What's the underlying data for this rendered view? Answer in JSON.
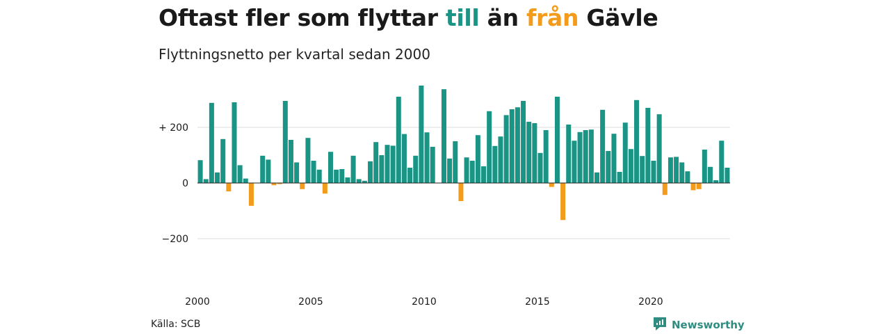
{
  "title": {
    "part1": "Oftast fler som flyttar ",
    "part2": "till",
    "part3": " än ",
    "part4": "från",
    "part5": " Gävle"
  },
  "subtitle": "Flyttningsnetto per kvartal sedan 2000",
  "source": "Källa: SCB",
  "brand": {
    "name": "Newsworthy",
    "logo_icon": "newsworthy-logo-icon"
  },
  "colors": {
    "positive": "#1a9484",
    "negative": "#f39c1b",
    "grid": "#dddddd",
    "zero_line": "#222222"
  },
  "chart_data": {
    "type": "bar",
    "title": "Oftast fler som flyttar till än från Gävle",
    "subtitle": "Flyttningsnetto per kvartal sedan 2000",
    "xlabel": "",
    "ylabel": "",
    "ylim": [
      -330,
      360
    ],
    "grid": true,
    "start_year": 2000,
    "x_ticks": [
      "2000",
      "2005",
      "2010",
      "2015",
      "2020"
    ],
    "y_ticks": [
      {
        "value": 200,
        "label": "+ 200"
      },
      {
        "value": 0,
        "label": "0"
      },
      {
        "value": -200,
        "label": "−200"
      }
    ],
    "values": [
      82,
      14,
      288,
      38,
      158,
      -30,
      290,
      64,
      16,
      -82,
      0,
      98,
      84,
      -8,
      -4,
      295,
      155,
      74,
      -22,
      162,
      80,
      48,
      -38,
      112,
      48,
      50,
      20,
      98,
      14,
      8,
      78,
      147,
      100,
      137,
      134,
      310,
      176,
      55,
      98,
      350,
      182,
      130,
      0,
      337,
      88,
      150,
      -65,
      92,
      80,
      172,
      60,
      258,
      133,
      167,
      244,
      265,
      272,
      295,
      220,
      215,
      108,
      190,
      -14,
      310,
      -133,
      210,
      152,
      183,
      190,
      192,
      38,
      263,
      115,
      177,
      40,
      217,
      122,
      298,
      97,
      270,
      80,
      247,
      -43,
      92,
      94,
      74,
      42,
      -26,
      -22,
      120,
      58,
      10,
      152,
      55
    ]
  }
}
